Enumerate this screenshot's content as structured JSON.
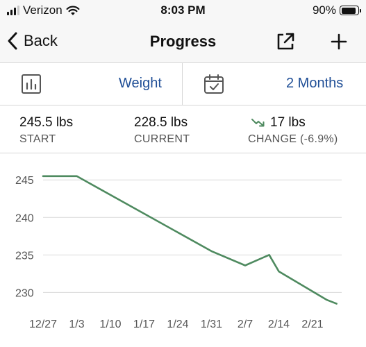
{
  "status_bar": {
    "carrier": "Verizon",
    "time": "8:03 PM",
    "battery_percent": "90%",
    "battery_level": 0.9,
    "signal_bars_active": 3,
    "signal_bars_total": 4
  },
  "nav": {
    "back_label": "Back",
    "title": "Progress",
    "share_icon": "share-icon",
    "add_icon": "plus-icon"
  },
  "selectors": {
    "metric": {
      "icon": "bar-chart-icon",
      "label": "Weight"
    },
    "range": {
      "icon": "calendar-check-icon",
      "label": "2 Months"
    }
  },
  "stats": {
    "start": {
      "value": "245.5 lbs",
      "caption": "START"
    },
    "current": {
      "value": "228.5 lbs",
      "caption": "CURRENT"
    },
    "change": {
      "icon": "trend-down-icon",
      "value": "17 lbs",
      "caption": "CHANGE (-6.9%)"
    }
  },
  "colors": {
    "accent_blue": "#1f4e96",
    "line_green": "#4e8a5f",
    "gridline": "#d9d9d9",
    "axis_text": "#555555"
  },
  "chart_data": {
    "type": "line",
    "title": "",
    "xlabel": "",
    "ylabel": "",
    "x_tick_labels": [
      "12/27",
      "1/3",
      "1/10",
      "1/17",
      "1/24",
      "1/31",
      "2/7",
      "2/14",
      "2/21"
    ],
    "y_ticks": [
      230,
      235,
      240,
      245
    ],
    "ylim": [
      228,
      246.5
    ],
    "grid": "horizontal",
    "legend": "none",
    "series": [
      {
        "points": [
          {
            "x": "12/27",
            "y": 245.5
          },
          {
            "x": "1/3",
            "y": 245.5
          },
          {
            "x": "1/31",
            "y": 235.5
          },
          {
            "x": "2/7",
            "y": 233.6
          },
          {
            "x": "2/12",
            "y": 235.0
          },
          {
            "x": "2/14",
            "y": 232.8
          },
          {
            "x": "2/24",
            "y": 229.0
          },
          {
            "x": "2/26",
            "y": 228.5
          }
        ]
      }
    ]
  }
}
